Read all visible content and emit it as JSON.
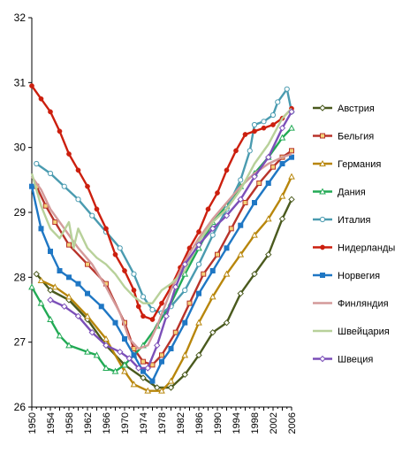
{
  "chart_data": {
    "type": "line",
    "title": "",
    "xlabel": "",
    "ylabel": "",
    "xlim": [
      1950,
      2006
    ],
    "ylim": [
      26,
      32
    ],
    "y_ticks": [
      26,
      27,
      28,
      29,
      30,
      31,
      32
    ],
    "x_ticks": [
      1950,
      1954,
      1958,
      1962,
      1966,
      1970,
      1974,
      1978,
      1982,
      1986,
      1990,
      1994,
      1998,
      2002,
      2006
    ],
    "grid": false,
    "legend_position": "right",
    "series": [
      {
        "name": "Австрия",
        "color": "#4a5a1e",
        "marker": "diamond",
        "points": [
          [
            1951,
            28.05
          ],
          [
            1954,
            27.8
          ],
          [
            1958,
            27.65
          ],
          [
            1962,
            27.35
          ],
          [
            1966,
            26.95
          ],
          [
            1970,
            26.65
          ],
          [
            1974,
            26.45
          ],
          [
            1977,
            26.3
          ],
          [
            1980,
            26.3
          ],
          [
            1983,
            26.5
          ],
          [
            1986,
            26.8
          ],
          [
            1989,
            27.15
          ],
          [
            1992,
            27.3
          ],
          [
            1995,
            27.75
          ],
          [
            1998,
            28.05
          ],
          [
            2001,
            28.35
          ],
          [
            2004,
            28.9
          ],
          [
            2006,
            29.2
          ]
        ]
      },
      {
        "name": "Бельгия",
        "color": "#b8332a",
        "marker": "square",
        "points": [
          [
            1951,
            29.4
          ],
          [
            1953,
            29.1
          ],
          [
            1955,
            28.85
          ],
          [
            1958,
            28.5
          ],
          [
            1962,
            28.2
          ],
          [
            1966,
            27.9
          ],
          [
            1970,
            27.3
          ],
          [
            1972,
            26.9
          ],
          [
            1974,
            26.7
          ],
          [
            1976,
            26.65
          ],
          [
            1978,
            26.8
          ],
          [
            1981,
            27.15
          ],
          [
            1984,
            27.6
          ],
          [
            1987,
            28.05
          ],
          [
            1990,
            28.35
          ],
          [
            1993,
            28.75
          ],
          [
            1996,
            29.15
          ],
          [
            1999,
            29.45
          ],
          [
            2002,
            29.7
          ],
          [
            2004,
            29.85
          ],
          [
            2006,
            29.95
          ]
        ]
      },
      {
        "name": "Германия",
        "color": "#b8860b",
        "marker": "triangle",
        "points": [
          [
            1952,
            27.95
          ],
          [
            1955,
            27.85
          ],
          [
            1958,
            27.7
          ],
          [
            1962,
            27.4
          ],
          [
            1966,
            27.05
          ],
          [
            1970,
            26.55
          ],
          [
            1972,
            26.35
          ],
          [
            1975,
            26.25
          ],
          [
            1978,
            26.25
          ],
          [
            1980,
            26.4
          ],
          [
            1983,
            26.8
          ],
          [
            1986,
            27.3
          ],
          [
            1989,
            27.7
          ],
          [
            1992,
            28.05
          ],
          [
            1995,
            28.35
          ],
          [
            1998,
            28.65
          ],
          [
            2001,
            28.9
          ],
          [
            2004,
            29.25
          ],
          [
            2006,
            29.55
          ]
        ]
      },
      {
        "name": "Дания",
        "color": "#22aa55",
        "marker": "triangle",
        "points": [
          [
            1950,
            27.85
          ],
          [
            1952,
            27.6
          ],
          [
            1954,
            27.35
          ],
          [
            1956,
            27.1
          ],
          [
            1958,
            26.95
          ],
          [
            1962,
            26.85
          ],
          [
            1964,
            26.8
          ],
          [
            1966,
            26.6
          ],
          [
            1968,
            26.55
          ],
          [
            1970,
            26.65
          ],
          [
            1972,
            26.8
          ],
          [
            1974,
            26.95
          ],
          [
            1977,
            27.25
          ],
          [
            1980,
            27.6
          ],
          [
            1983,
            28.05
          ],
          [
            1986,
            28.45
          ],
          [
            1989,
            28.85
          ],
          [
            1992,
            29.1
          ],
          [
            1995,
            29.4
          ],
          [
            1998,
            29.6
          ],
          [
            2001,
            29.85
          ],
          [
            2004,
            30.15
          ],
          [
            2006,
            30.3
          ]
        ]
      },
      {
        "name": "Италия",
        "color": "#4a9bb0",
        "marker": "circle",
        "points": [
          [
            1951,
            29.75
          ],
          [
            1954,
            29.6
          ],
          [
            1957,
            29.4
          ],
          [
            1960,
            29.2
          ],
          [
            1963,
            28.95
          ],
          [
            1966,
            28.7
          ],
          [
            1969,
            28.45
          ],
          [
            1972,
            28.05
          ],
          [
            1974,
            27.7
          ],
          [
            1976,
            27.5
          ],
          [
            1978,
            27.45
          ],
          [
            1980,
            27.55
          ],
          [
            1983,
            27.8
          ],
          [
            1986,
            28.2
          ],
          [
            1989,
            28.65
          ],
          [
            1992,
            29.05
          ],
          [
            1995,
            29.5
          ],
          [
            1997,
            29.95
          ],
          [
            1998,
            30.35
          ],
          [
            2000,
            30.4
          ],
          [
            2002,
            30.5
          ],
          [
            2003,
            30.7
          ],
          [
            2005,
            30.9
          ],
          [
            2006,
            30.55
          ]
        ]
      },
      {
        "name": "Нидерланды",
        "color": "#cc1f0e",
        "marker": "dot",
        "points": [
          [
            1950,
            30.95
          ],
          [
            1952,
            30.75
          ],
          [
            1954,
            30.55
          ],
          [
            1956,
            30.25
          ],
          [
            1958,
            29.9
          ],
          [
            1960,
            29.65
          ],
          [
            1962,
            29.4
          ],
          [
            1964,
            29.05
          ],
          [
            1966,
            28.75
          ],
          [
            1968,
            28.35
          ],
          [
            1970,
            28.1
          ],
          [
            1972,
            27.8
          ],
          [
            1973,
            27.55
          ],
          [
            1974,
            27.4
          ],
          [
            1976,
            27.35
          ],
          [
            1978,
            27.6
          ],
          [
            1980,
            27.85
          ],
          [
            1982,
            28.15
          ],
          [
            1984,
            28.45
          ],
          [
            1986,
            28.7
          ],
          [
            1988,
            29.05
          ],
          [
            1990,
            29.3
          ],
          [
            1992,
            29.65
          ],
          [
            1994,
            29.95
          ],
          [
            1996,
            30.2
          ],
          [
            1998,
            30.25
          ],
          [
            2000,
            30.3
          ],
          [
            2002,
            30.35
          ],
          [
            2004,
            30.45
          ],
          [
            2006,
            30.6
          ]
        ]
      },
      {
        "name": "Норвегия",
        "color": "#1f77c4",
        "marker": "square",
        "points": [
          [
            1950,
            29.4
          ],
          [
            1952,
            28.75
          ],
          [
            1954,
            28.4
          ],
          [
            1956,
            28.1
          ],
          [
            1958,
            28.0
          ],
          [
            1960,
            27.9
          ],
          [
            1962,
            27.75
          ],
          [
            1965,
            27.55
          ],
          [
            1968,
            27.3
          ],
          [
            1970,
            27.05
          ],
          [
            1972,
            26.8
          ],
          [
            1974,
            26.55
          ],
          [
            1976,
            26.4
          ],
          [
            1978,
            26.7
          ],
          [
            1980,
            26.9
          ],
          [
            1983,
            27.3
          ],
          [
            1986,
            27.75
          ],
          [
            1989,
            28.1
          ],
          [
            1992,
            28.45
          ],
          [
            1995,
            28.8
          ],
          [
            1998,
            29.15
          ],
          [
            2001,
            29.45
          ],
          [
            2004,
            29.75
          ],
          [
            2006,
            29.85
          ]
        ]
      },
      {
        "name": "Финляндия",
        "color": "#d49a9a",
        "marker": "none",
        "points": [
          [
            1950,
            29.55
          ],
          [
            1952,
            29.35
          ],
          [
            1954,
            29.05
          ],
          [
            1957,
            28.75
          ],
          [
            1960,
            28.45
          ],
          [
            1963,
            28.2
          ],
          [
            1966,
            27.85
          ],
          [
            1969,
            27.45
          ],
          [
            1971,
            27.05
          ],
          [
            1973,
            26.9
          ],
          [
            1975,
            26.95
          ],
          [
            1977,
            27.25
          ],
          [
            1980,
            27.8
          ],
          [
            1983,
            28.25
          ],
          [
            1986,
            28.6
          ],
          [
            1989,
            28.9
          ],
          [
            1992,
            29.15
          ],
          [
            1995,
            29.4
          ],
          [
            1998,
            29.6
          ],
          [
            2001,
            29.75
          ],
          [
            2004,
            29.85
          ],
          [
            2006,
            29.9
          ]
        ]
      },
      {
        "name": "Швейцария",
        "color": "#b8d19a",
        "marker": "none",
        "points": [
          [
            1950,
            29.6
          ],
          [
            1952,
            29.1
          ],
          [
            1954,
            28.75
          ],
          [
            1956,
            28.6
          ],
          [
            1958,
            28.85
          ],
          [
            1959,
            28.45
          ],
          [
            1960,
            28.75
          ],
          [
            1962,
            28.45
          ],
          [
            1964,
            28.3
          ],
          [
            1966,
            28.2
          ],
          [
            1968,
            28.05
          ],
          [
            1970,
            27.85
          ],
          [
            1972,
            27.7
          ],
          [
            1974,
            27.6
          ],
          [
            1976,
            27.6
          ],
          [
            1978,
            27.8
          ],
          [
            1980,
            27.9
          ],
          [
            1983,
            28.1
          ],
          [
            1986,
            28.55
          ],
          [
            1989,
            28.85
          ],
          [
            1992,
            29.05
          ],
          [
            1995,
            29.35
          ],
          [
            1998,
            29.75
          ],
          [
            2001,
            30.05
          ],
          [
            2004,
            30.45
          ],
          [
            2006,
            30.6
          ]
        ]
      },
      {
        "name": "Швеция",
        "color": "#7b4fb8",
        "marker": "diamond",
        "points": [
          [
            1954,
            27.65
          ],
          [
            1957,
            27.55
          ],
          [
            1960,
            27.4
          ],
          [
            1963,
            27.15
          ],
          [
            1966,
            26.95
          ],
          [
            1969,
            26.85
          ],
          [
            1971,
            26.75
          ],
          [
            1973,
            26.6
          ],
          [
            1975,
            26.6
          ],
          [
            1977,
            26.95
          ],
          [
            1979,
            27.4
          ],
          [
            1981,
            27.85
          ],
          [
            1983,
            28.2
          ],
          [
            1986,
            28.5
          ],
          [
            1989,
            28.75
          ],
          [
            1992,
            28.95
          ],
          [
            1995,
            29.2
          ],
          [
            1998,
            29.55
          ],
          [
            2001,
            29.85
          ],
          [
            2004,
            30.3
          ],
          [
            2006,
            30.55
          ]
        ]
      }
    ]
  }
}
